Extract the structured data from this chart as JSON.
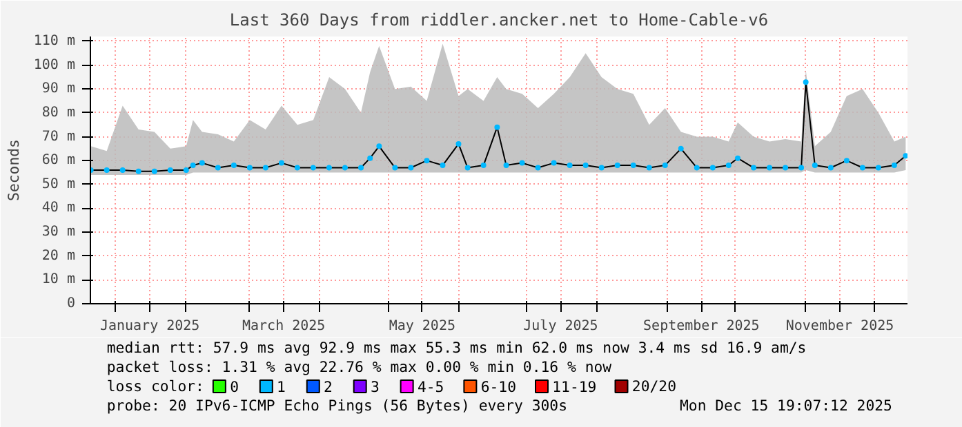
{
  "chart_data": {
    "type": "line",
    "title": "Last 360 Days from riddler.ancker.net to Home-Cable-v6",
    "ylabel": "Seconds",
    "x": [
      "2024-12-21",
      "2024-12-28",
      "2025-01-04",
      "2025-01-11",
      "2025-01-18",
      "2025-01-25",
      "2025-02-01",
      "2025-02-04",
      "2025-02-08",
      "2025-02-15",
      "2025-02-22",
      "2025-03-01",
      "2025-03-08",
      "2025-03-15",
      "2025-03-22",
      "2025-03-29",
      "2025-04-05",
      "2025-04-12",
      "2025-04-19",
      "2025-04-23",
      "2025-04-27",
      "2025-05-04",
      "2025-05-11",
      "2025-05-18",
      "2025-05-25",
      "2025-06-01",
      "2025-06-05",
      "2025-06-12",
      "2025-06-18",
      "2025-06-22",
      "2025-06-29",
      "2025-07-06",
      "2025-07-13",
      "2025-07-20",
      "2025-07-27",
      "2025-08-03",
      "2025-08-10",
      "2025-08-17",
      "2025-08-24",
      "2025-08-31",
      "2025-09-07",
      "2025-09-14",
      "2025-09-21",
      "2025-09-28",
      "2025-10-02",
      "2025-10-09",
      "2025-10-16",
      "2025-10-23",
      "2025-10-30",
      "2025-11-01",
      "2025-11-05",
      "2025-11-12",
      "2025-11-19",
      "2025-11-26",
      "2025-12-03",
      "2025-12-10",
      "2025-12-15"
    ],
    "legend_title": "loss color:",
    "legend": "bottom",
    "grid": true,
    "marker": "circle",
    "series": [
      {
        "name": "0",
        "color": "#26ff00",
        "values": [
          null,
          null,
          null,
          null,
          null,
          null,
          null,
          null,
          null,
          null,
          null,
          null,
          null,
          null,
          null,
          null,
          null,
          null,
          null,
          null,
          null,
          null,
          null,
          null,
          null,
          null,
          null,
          null,
          null,
          null,
          null,
          null,
          null,
          null,
          null,
          null,
          null,
          null,
          null,
          null,
          null,
          null,
          null,
          null,
          null,
          null,
          null,
          null,
          null,
          null,
          null,
          null,
          null,
          null,
          null,
          null,
          null
        ]
      },
      {
        "name": "1",
        "color": "#00b8ff",
        "values": [
          56,
          56,
          56,
          55.5,
          55.5,
          56,
          56,
          58,
          59,
          57,
          58,
          57,
          57,
          59,
          57,
          57,
          57,
          57,
          57,
          61,
          66,
          57,
          57,
          60,
          58,
          67,
          57,
          58,
          74,
          58,
          59,
          57,
          59,
          58,
          58,
          57,
          58,
          58,
          57,
          58,
          65,
          57,
          57,
          58,
          61,
          57,
          57,
          57,
          57,
          92.9,
          58,
          57,
          60,
          57,
          57,
          58,
          62
        ],
        "lower": [
          54,
          54,
          54,
          54,
          54,
          54,
          54,
          55,
          55,
          55,
          55,
          55,
          55,
          55,
          55,
          55,
          55,
          55,
          55,
          55,
          55,
          55,
          55,
          55,
          55,
          55,
          55,
          55,
          55,
          55,
          55,
          55,
          55,
          55,
          55,
          55,
          55,
          55,
          55,
          55,
          55,
          55,
          55,
          55,
          55,
          55,
          55,
          55,
          55,
          56,
          55,
          55,
          55,
          55,
          55,
          55,
          56
        ],
        "upper": [
          66,
          64,
          83,
          73,
          72,
          65,
          66,
          77,
          72,
          71,
          68,
          77,
          73,
          83,
          75,
          77,
          95,
          90,
          80,
          97,
          108,
          90,
          91,
          85,
          109,
          87,
          90,
          85,
          95,
          90,
          88,
          82,
          88,
          95,
          105,
          95,
          90,
          88,
          75,
          82,
          72,
          70,
          70,
          68,
          76,
          70,
          68,
          69,
          68,
          98,
          66,
          72,
          87,
          90,
          80,
          68,
          70
        ]
      },
      {
        "name": "2",
        "color": "#0059ff",
        "values": [
          null,
          null,
          null,
          null,
          null,
          null,
          null,
          null,
          null,
          null,
          null,
          null,
          null,
          null,
          null,
          null,
          null,
          null,
          null,
          null,
          null,
          null,
          null,
          null,
          null,
          null,
          null,
          null,
          null,
          null,
          null,
          null,
          null,
          null,
          null,
          null,
          null,
          null,
          null,
          null,
          null,
          null,
          null,
          null,
          null,
          null,
          null,
          null,
          null,
          null,
          null,
          null,
          null,
          null,
          null,
          null,
          null
        ]
      },
      {
        "name": "3",
        "color": "#7e00ff",
        "values": [
          null,
          null,
          null,
          null,
          null,
          null,
          null,
          null,
          null,
          null,
          null,
          null,
          null,
          null,
          null,
          null,
          null,
          null,
          null,
          null,
          null,
          null,
          null,
          null,
          null,
          null,
          null,
          null,
          null,
          null,
          null,
          null,
          null,
          null,
          null,
          null,
          null,
          null,
          null,
          null,
          null,
          null,
          null,
          null,
          null,
          null,
          null,
          null,
          null,
          null,
          null,
          null,
          null,
          null,
          null,
          null,
          null
        ]
      },
      {
        "name": "4-5",
        "color": "#ff00ff",
        "values": [
          null,
          null,
          null,
          null,
          null,
          null,
          null,
          null,
          null,
          null,
          null,
          null,
          null,
          null,
          null,
          null,
          null,
          null,
          null,
          null,
          null,
          null,
          null,
          null,
          null,
          null,
          null,
          null,
          null,
          null,
          null,
          null,
          null,
          null,
          null,
          null,
          null,
          null,
          null,
          null,
          null,
          null,
          null,
          null,
          null,
          null,
          null,
          null,
          null,
          null,
          null,
          null,
          null,
          null,
          null,
          null,
          null
        ]
      },
      {
        "name": "6-10",
        "color": "#ff5500",
        "values": [
          null,
          null,
          null,
          null,
          null,
          null,
          null,
          null,
          null,
          null,
          null,
          null,
          null,
          null,
          null,
          null,
          null,
          null,
          null,
          null,
          null,
          null,
          null,
          null,
          null,
          null,
          null,
          null,
          null,
          null,
          null,
          null,
          null,
          null,
          null,
          null,
          null,
          null,
          null,
          null,
          null,
          null,
          null,
          null,
          null,
          null,
          null,
          null,
          null,
          null,
          null,
          null,
          null,
          null,
          null,
          null,
          null
        ]
      },
      {
        "name": "11-19",
        "color": "#ff0000",
        "values": [
          null,
          null,
          null,
          null,
          null,
          null,
          null,
          null,
          null,
          null,
          null,
          null,
          null,
          null,
          null,
          null,
          null,
          null,
          null,
          null,
          null,
          null,
          null,
          null,
          null,
          null,
          null,
          null,
          null,
          null,
          null,
          null,
          null,
          null,
          null,
          null,
          null,
          null,
          null,
          null,
          null,
          null,
          null,
          null,
          null,
          null,
          null,
          null,
          null,
          null,
          null,
          null,
          null,
          null,
          null,
          null,
          null
        ]
      },
      {
        "name": "20/20",
        "color": "#a10000",
        "values": [
          null,
          null,
          null,
          null,
          null,
          null,
          null,
          null,
          null,
          null,
          null,
          null,
          null,
          null,
          null,
          null,
          null,
          null,
          null,
          null,
          null,
          null,
          null,
          null,
          null,
          null,
          null,
          null,
          null,
          null,
          null,
          null,
          null,
          null,
          null,
          null,
          null,
          null,
          null,
          null,
          null,
          null,
          null,
          null,
          null,
          null,
          null,
          null,
          null,
          null,
          null,
          null,
          null,
          null,
          null,
          null,
          null
        ]
      }
    ],
    "xlim": [
      "2024-12-20T19:07",
      "2025-12-15T19:07"
    ],
    "xticks": [
      {
        "value": "2025-01-01",
        "label": null
      },
      {
        "value": "2025-01-16",
        "label": "January 2025"
      },
      {
        "value": "2025-02-01",
        "label": null
      },
      {
        "value": "2025-03-01",
        "label": null
      },
      {
        "value": "2025-03-16",
        "label": "March 2025"
      },
      {
        "value": "2025-04-01",
        "label": null
      },
      {
        "value": "2025-05-01",
        "label": null
      },
      {
        "value": "2025-05-16",
        "label": "May 2025"
      },
      {
        "value": "2025-06-01",
        "label": null
      },
      {
        "value": "2025-07-01",
        "label": null
      },
      {
        "value": "2025-07-16",
        "label": "July 2025"
      },
      {
        "value": "2025-08-01",
        "label": null
      },
      {
        "value": "2025-09-01",
        "label": null
      },
      {
        "value": "2025-09-16",
        "label": "September 2025"
      },
      {
        "value": "2025-10-01",
        "label": null
      },
      {
        "value": "2025-11-01",
        "label": null
      },
      {
        "value": "2025-11-16",
        "label": "November 2025"
      },
      {
        "value": "2025-12-01",
        "label": null
      }
    ],
    "ylim": [
      0,
      112
    ],
    "yticks": [
      {
        "value": 0,
        "label": "0"
      },
      {
        "value": 10,
        "label": "10 m"
      },
      {
        "value": 20,
        "label": "20 m"
      },
      {
        "value": 30,
        "label": "30 m"
      },
      {
        "value": 40,
        "label": "40 m"
      },
      {
        "value": 50,
        "label": "50 m"
      },
      {
        "value": 60,
        "label": "60 m"
      },
      {
        "value": 70,
        "label": "70 m"
      },
      {
        "value": 80,
        "label": "80 m"
      },
      {
        "value": 90,
        "label": "90 m"
      },
      {
        "value": 100,
        "label": "100 m"
      },
      {
        "value": 110,
        "label": "110 m"
      }
    ],
    "annotations": [
      "median rtt:  57.9 ms avg  92.9 ms max  55.3 ms min  62.0 ms now  3.4 ms sd  16.9   am/s",
      "packet loss: 1.31 % avg  22.76 % max  0.00 % min  0.16 % now",
      "probe:       20 IPv6-ICMP Echo Pings (56 Bytes) every 300s",
      "Mon Dec 15 19:07:12 2025"
    ]
  }
}
